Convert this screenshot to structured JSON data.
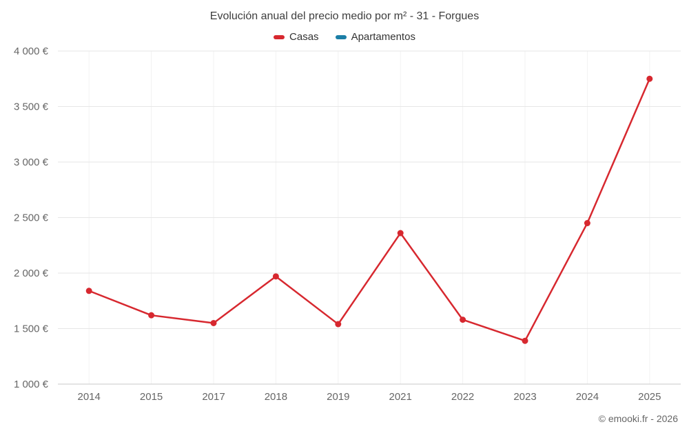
{
  "footer": {
    "copyright": "© emooki.fr - 2026"
  },
  "chart_data": {
    "type": "line",
    "title": "Evolución anual del precio medio por m² - 31 - Forgues",
    "categories": [
      "2014",
      "2015",
      "2017",
      "2018",
      "2019",
      "2021",
      "2022",
      "2023",
      "2024",
      "2025"
    ],
    "series": [
      {
        "name": "Casas",
        "color": "#d7282f",
        "values": [
          1840,
          1620,
          1550,
          1970,
          1540,
          2360,
          1580,
          1390,
          2450,
          3750
        ]
      },
      {
        "name": "Apartamentos",
        "color": "#1b7ea6",
        "values": []
      }
    ],
    "xlabel": "",
    "ylabel": "",
    "ylim": [
      1000,
      4000
    ],
    "ytick_values": [
      1000,
      1500,
      2000,
      2500,
      3000,
      3500,
      4000
    ],
    "ytick_labels": [
      "1 000 €",
      "1 500 €",
      "2 000 €",
      "2 500 €",
      "3 000 €",
      "3 500 €",
      "4 000 €"
    ],
    "grid": true,
    "legend_position": "top"
  }
}
